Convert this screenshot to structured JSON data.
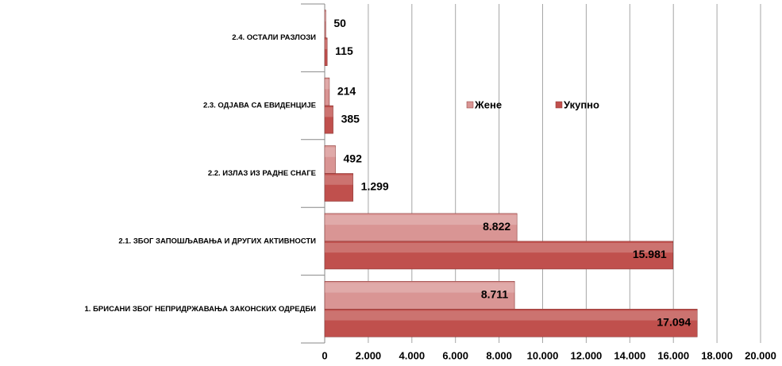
{
  "chart_data": {
    "type": "bar",
    "orientation": "horizontal",
    "categories": [
      "2.4. ОСТАЛИ РАЗЛОЗИ",
      "2.3. ОДЈАВА СА ЕВИДЕНЦИЈЕ",
      "2.2. ИЗЛАЗ ИЗ РАДНЕ СНАГЕ",
      "2.1. ЗБОГ ЗАПОШЉАВАЊА И ДРУГИХ АКТИВНОСТИ",
      "1. БРИСАНИ ЗБОГ НЕПРИДРЖАВАЊА ЗАКОНСКИХ ОДРЕДБИ"
    ],
    "series": [
      {
        "name": "Жене",
        "color": "#d99594",
        "values": [
          50,
          214,
          492,
          8822,
          8711
        ],
        "value_labels": [
          "50",
          "214",
          "492",
          "8.822",
          "8.711"
        ]
      },
      {
        "name": "Укупно",
        "color": "#c0504d",
        "values": [
          115,
          385,
          1299,
          15981,
          17094
        ],
        "value_labels": [
          "115",
          "385",
          "1.299",
          "15.981",
          "17.094"
        ]
      }
    ],
    "xlim": [
      0,
      20000
    ],
    "xticks": [
      0,
      {
        "value": 2000,
        "label": "2.000"
      },
      {
        "value": 4000,
        "label": "4.000"
      },
      {
        "value": 6000,
        "label": "6.000"
      },
      {
        "value": 8000,
        "label": "8.000"
      },
      {
        "value": 10000,
        "label": "10.000"
      },
      {
        "value": 12000,
        "label": "12.000"
      },
      {
        "value": 14000,
        "label": "14.000"
      },
      {
        "value": 16000,
        "label": "16.000"
      },
      {
        "value": 18000,
        "label": "18.000"
      },
      {
        "value": 20000,
        "label": "20.000"
      }
    ],
    "grid": true,
    "legend": "center"
  }
}
